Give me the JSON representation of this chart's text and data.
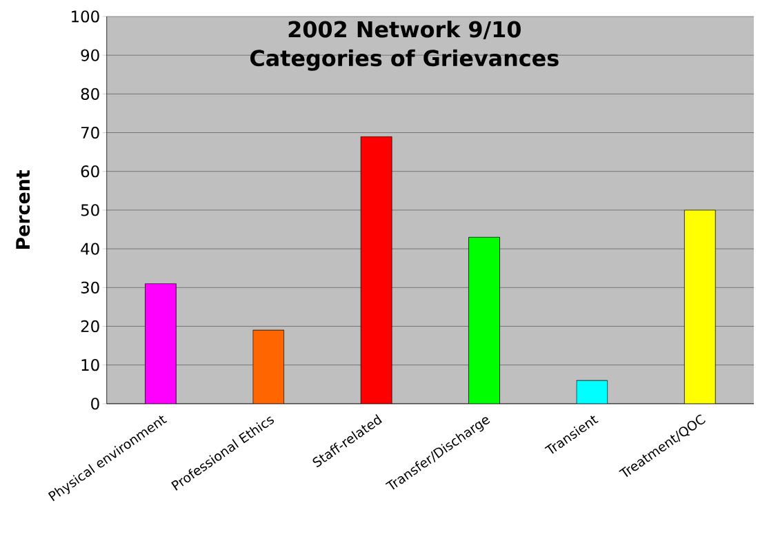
{
  "chart_data": {
    "type": "bar",
    "title": "2002 Network 9/10",
    "subtitle": "Categories of Grievances",
    "ylabel": "Percent",
    "categories": [
      "Physical environment",
      "Professional Ethics",
      "Staff-related",
      "Transfer/Discharge",
      "Transient",
      "Treatment/QOC"
    ],
    "values": [
      31,
      19,
      69,
      43,
      6,
      50
    ],
    "colors": [
      "#ff00ff",
      "#ff6600",
      "#ff0000",
      "#00ff00",
      "#00ffff",
      "#ffff00"
    ],
    "ylim": [
      0,
      100
    ],
    "yticks": [
      0,
      10,
      20,
      30,
      40,
      50,
      60,
      70,
      80,
      90,
      100
    ],
    "grid": "y"
  }
}
